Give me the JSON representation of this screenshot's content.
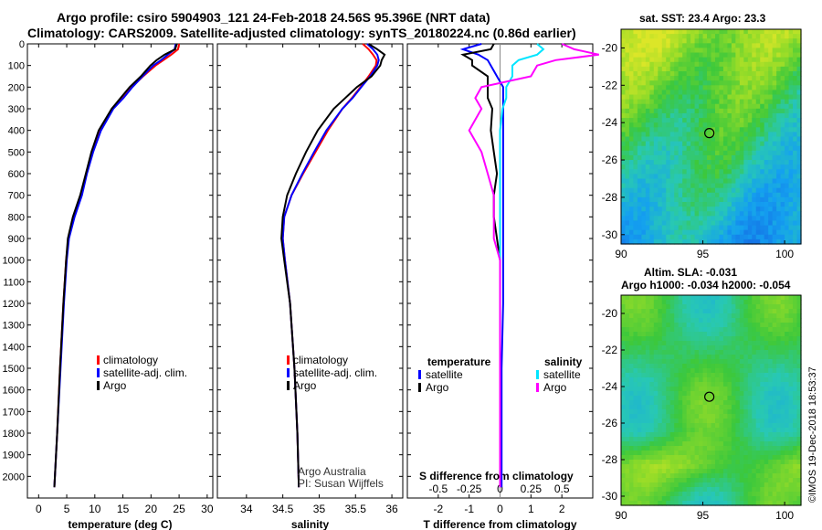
{
  "header": {
    "line1": "Argo profile: csiro 5904903_121 24-Feb-2018 24.56S 95.396E (NRT data)",
    "line2": "Climatology: CARS2009. Satellite-adjusted climatology: synTS_20180224.nc (0.86d earlier)"
  },
  "colors": {
    "climatology": "#ff0000",
    "satellite": "#0000ff",
    "argo": "#000000",
    "argo_salinity": "#ff00ff",
    "satellite_salinity": "#00e5ff"
  },
  "credits": {
    "line1": "Argo Australia",
    "line2": "PI: Susan Wijffels"
  },
  "stamp": "©IMOS 19-Dec-2018 18:53:37",
  "chart_data": [
    {
      "id": "temperature",
      "type": "line",
      "xlabel": "temperature (deg C)",
      "xlim": [
        -2,
        31
      ],
      "xticks": [
        0,
        5,
        10,
        15,
        20,
        25,
        30
      ],
      "ylim": [
        2100,
        0
      ],
      "yticks": [
        0,
        100,
        200,
        300,
        400,
        500,
        600,
        700,
        800,
        900,
        1000,
        1100,
        1200,
        1300,
        1400,
        1500,
        1600,
        1700,
        1800,
        1900,
        2000
      ],
      "legend": [
        "climatology",
        "satellite-adj. clim.",
        "Argo"
      ],
      "depth": [
        0,
        25,
        50,
        75,
        100,
        150,
        200,
        250,
        300,
        400,
        500,
        600,
        700,
        800,
        900,
        1000,
        1200,
        1500,
        1800,
        2050
      ],
      "series": [
        {
          "name": "climatology",
          "values": [
            25.0,
            24.8,
            23.6,
            22.2,
            20.8,
            18.6,
            16.6,
            15.0,
            13.2,
            11.0,
            9.6,
            8.5,
            7.6,
            6.3,
            5.3,
            4.9,
            4.4,
            3.8,
            3.3,
            2.8
          ]
        },
        {
          "name": "satellite-adj. clim.",
          "values": [
            24.4,
            24.2,
            23.0,
            21.8,
            20.4,
            18.5,
            16.7,
            15.1,
            13.3,
            11.1,
            9.7,
            8.6,
            7.7,
            6.4,
            5.4,
            5.0,
            4.5,
            3.9,
            3.3,
            2.8
          ]
        },
        {
          "name": "Argo",
          "values": [
            24.6,
            24.3,
            22.4,
            21.0,
            19.9,
            18.2,
            16.2,
            14.6,
            13.0,
            10.7,
            9.4,
            8.4,
            7.4,
            6.1,
            5.2,
            4.9,
            4.4,
            3.8,
            3.3,
            2.8
          ]
        }
      ]
    },
    {
      "id": "salinity",
      "type": "line",
      "xlabel": "salinity",
      "xlim": [
        33.6,
        36.15
      ],
      "xticks": [
        34,
        34.5,
        35,
        35.5,
        36
      ],
      "ylim": [
        2100,
        0
      ],
      "legend": [
        "climatology",
        "satellite-adj. clim.",
        "Argo"
      ],
      "depth": [
        0,
        25,
        50,
        75,
        100,
        150,
        200,
        250,
        300,
        400,
        500,
        600,
        700,
        800,
        900,
        1000,
        1200,
        1500,
        1800,
        2050
      ],
      "series": [
        {
          "name": "climatology",
          "values": [
            35.6,
            35.68,
            35.74,
            35.79,
            35.78,
            35.68,
            35.57,
            35.45,
            35.32,
            35.12,
            34.95,
            34.78,
            34.62,
            34.52,
            34.5,
            34.53,
            34.6,
            34.66,
            34.7,
            34.72
          ]
        },
        {
          "name": "satellite-adj. clim.",
          "values": [
            35.66,
            35.74,
            35.8,
            35.82,
            35.8,
            35.7,
            35.58,
            35.46,
            35.32,
            35.1,
            34.93,
            34.77,
            34.62,
            34.52,
            34.5,
            34.53,
            34.6,
            34.66,
            34.7,
            34.72
          ]
        },
        {
          "name": "Argo",
          "values": [
            35.68,
            35.8,
            35.9,
            35.86,
            35.84,
            35.72,
            35.52,
            35.36,
            35.2,
            34.98,
            34.82,
            34.68,
            34.56,
            34.5,
            34.48,
            34.52,
            34.6,
            34.66,
            34.7,
            34.72
          ]
        }
      ]
    },
    {
      "id": "difference",
      "type": "line",
      "xlabel": "T difference from climatology",
      "xlim": [
        -3,
        3
      ],
      "xticks": [
        -2,
        -1,
        0,
        1,
        2
      ],
      "s_title": "S difference from climatology",
      "s_xticks": [
        "-0.5",
        "-0.25",
        "0",
        "0.25",
        "0.5"
      ],
      "ylim": [
        2100,
        0
      ],
      "legend_left_title": "temperature",
      "legend_right_title": "salinity",
      "legend_left": [
        "satellite",
        "Argo"
      ],
      "legend_right": [
        "satellite",
        "Argo"
      ],
      "depth": [
        0,
        25,
        50,
        75,
        100,
        150,
        200,
        250,
        300,
        400,
        500,
        600,
        700,
        800,
        900,
        1000,
        1200,
        1500,
        1800,
        2050
      ],
      "series": [
        {
          "name": "temperature satellite",
          "values": [
            -0.6,
            -1.2,
            -0.7,
            -0.4,
            -0.3,
            -0.1,
            0.1,
            0.1,
            0.1,
            0.1,
            0.1,
            0.1,
            0.1,
            0.1,
            0.1,
            0.1,
            0.1,
            0.05,
            0.05,
            0.05
          ]
        },
        {
          "name": "temperature Argo",
          "values": [
            -0.2,
            -0.3,
            -1.2,
            -0.9,
            -0.9,
            -0.4,
            -0.4,
            -0.4,
            -0.25,
            -0.3,
            -0.2,
            -0.1,
            -0.2,
            -0.2,
            -0.1,
            0,
            0,
            0,
            0,
            0
          ]
        },
        {
          "name": "salinity satellite",
          "values": [
            0.3,
            0.35,
            0.3,
            0.15,
            0.1,
            0.1,
            0.05,
            0.05,
            0.02,
            0,
            0,
            0,
            0,
            0,
            0,
            0,
            0,
            0,
            0,
            0
          ]
        },
        {
          "name": "salinity Argo",
          "values": [
            0.5,
            0.6,
            0.8,
            0.45,
            0.3,
            0.25,
            -0.15,
            -0.2,
            -0.15,
            -0.25,
            -0.15,
            -0.1,
            -0.05,
            -0.05,
            -0.05,
            0,
            0,
            0,
            0,
            0
          ]
        }
      ]
    },
    {
      "id": "sst-map",
      "type": "heatmap",
      "title": "sat. SST: 23.4 Argo: 23.3",
      "xlim": [
        90,
        101
      ],
      "xticks": [
        90,
        95,
        100
      ],
      "ylim": [
        -30.5,
        -19
      ],
      "yticks": [
        -20,
        -22,
        -24,
        -26,
        -28,
        -30
      ],
      "marker": {
        "lon": 95.396,
        "lat": -24.56
      }
    },
    {
      "id": "sla-map",
      "type": "heatmap",
      "title_line1": "Altim. SLA: -0.031",
      "title_line2": "Argo h1000: -0.034 h2000: -0.054",
      "xlim": [
        90,
        101
      ],
      "xticks": [
        90,
        95,
        100
      ],
      "ylim": [
        -30.5,
        -19
      ],
      "yticks": [
        -20,
        -22,
        -24,
        -26,
        -28,
        -30
      ],
      "marker": {
        "lon": 95.396,
        "lat": -24.56
      }
    }
  ]
}
